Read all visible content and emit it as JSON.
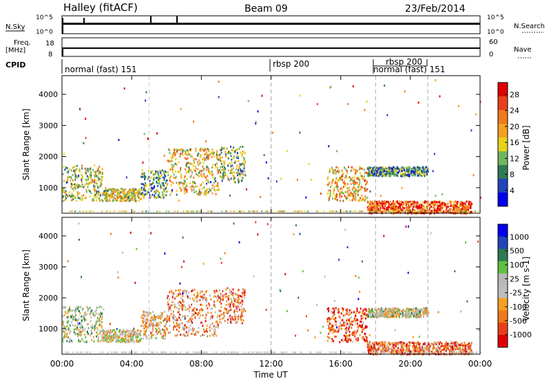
{
  "header": {
    "station": "Halley (fitACF)",
    "beam": "Beam 09",
    "date": "23/Feb/2014"
  },
  "noise_panel": {
    "left_label": "N.Sky",
    "left_ticks": [
      "10^5",
      "10^0"
    ],
    "right_label": "N.Search",
    "right_ticks": [
      "10^5",
      "10^0"
    ]
  },
  "freq_panel": {
    "left_label_1": "Freq.",
    "left_label_2": "[MHz]",
    "left_ticks": [
      "18",
      "8"
    ],
    "right_label": "Nave",
    "right_ticks": [
      "60",
      "0"
    ]
  },
  "cpid": {
    "label": "CPID",
    "segments": [
      {
        "name": "normal (fast) 151",
        "start_hour": 0.0
      },
      {
        "name": "rbsp 200",
        "start_hour": 12.0
      },
      {
        "name": "normal (fast) 151",
        "start_hour": 18.0
      },
      {
        "name": "rbsp 200",
        "start_hour": 18.8
      }
    ]
  },
  "colors": {
    "power_scale": [
      "#0000ee",
      "#2244bb",
      "#2f7a55",
      "#6fb65f",
      "#e8d21a",
      "#f5a020",
      "#f07a1c",
      "#e8401b",
      "#e00000"
    ],
    "velocity_scale": [
      "#e00000",
      "#e8401b",
      "#f07a1c",
      "#f5a020",
      "#bdbdbd",
      "#b8b8b8",
      "#60c040",
      "#2f7a55",
      "#2244bb",
      "#0000ee"
    ]
  },
  "chart_data": [
    {
      "type": "heatmap",
      "panel": "power",
      "xlabel": "",
      "ylabel": "Slant Range [km]",
      "ylim": [
        180,
        4600
      ],
      "xlim": [
        0,
        24
      ],
      "yticks": [
        "1000",
        "2000",
        "3000",
        "4000"
      ],
      "colorbar": {
        "label": "Power [dB]",
        "ticks": [
          "4",
          "8",
          "12",
          "16",
          "20",
          "24",
          "28"
        ],
        "range": [
          0,
          31
        ]
      },
      "echo_regions": [
        {
          "t0": 0.0,
          "t1": 2.3,
          "r0": 600,
          "r1": 1750,
          "level": 0.45
        },
        {
          "t0": 2.3,
          "t1": 4.5,
          "r0": 600,
          "r1": 1000,
          "level": 0.5
        },
        {
          "t0": 4.5,
          "t1": 6.0,
          "r0": 700,
          "r1": 1600,
          "level": 0.35
        },
        {
          "t0": 6.0,
          "t1": 9.0,
          "r0": 800,
          "r1": 2300,
          "level": 0.55
        },
        {
          "t0": 9.0,
          "t1": 10.5,
          "r0": 1200,
          "r1": 2350,
          "level": 0.4
        },
        {
          "t0": 15.2,
          "t1": 17.5,
          "r0": 600,
          "r1": 1700,
          "level": 0.6
        },
        {
          "t0": 17.5,
          "t1": 23.5,
          "r0": 200,
          "r1": 600,
          "level": 0.8
        },
        {
          "t0": 17.5,
          "t1": 21.0,
          "r0": 1400,
          "r1": 1700,
          "level": 0.3
        }
      ]
    },
    {
      "type": "heatmap",
      "panel": "velocity",
      "xlabel": "Time UT",
      "ylabel": "Slant Range [km]",
      "ylim": [
        180,
        4600
      ],
      "xlim": [
        0,
        24
      ],
      "xticks": [
        "00:00",
        "04:00",
        "08:00",
        "12:00",
        "16:00",
        "20:00",
        "00:00"
      ],
      "yticks": [
        "1000",
        "2000",
        "3000",
        "4000"
      ],
      "colorbar": {
        "label": "Velocity [m s-1]",
        "ticks": [
          "1000",
          "500",
          "100",
          "25",
          "-25",
          "-100",
          "-500",
          "-1000"
        ]
      },
      "echo_regions": [
        {
          "t0": 0.0,
          "t1": 2.3,
          "r0": 600,
          "r1": 1750,
          "level": 0.55
        },
        {
          "t0": 2.3,
          "t1": 4.5,
          "r0": 600,
          "r1": 1000,
          "level": 0.45
        },
        {
          "t0": 4.5,
          "t1": 6.0,
          "r0": 700,
          "r1": 1600,
          "level": 0.4
        },
        {
          "t0": 6.0,
          "t1": 9.0,
          "r0": 800,
          "r1": 2300,
          "level": 0.3
        },
        {
          "t0": 9.0,
          "t1": 10.5,
          "r0": 1200,
          "r1": 2350,
          "level": 0.3
        },
        {
          "t0": 15.2,
          "t1": 17.5,
          "r0": 600,
          "r1": 1700,
          "level": 0.2
        },
        {
          "t0": 17.5,
          "t1": 23.5,
          "r0": 200,
          "r1": 600,
          "level": 0.25
        },
        {
          "t0": 17.5,
          "t1": 21.0,
          "r0": 1400,
          "r1": 1700,
          "level": 0.5
        }
      ]
    }
  ]
}
